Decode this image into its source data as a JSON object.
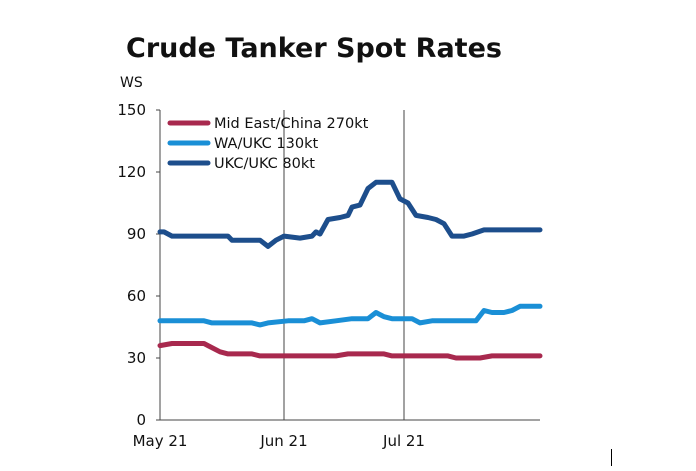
{
  "chart_data": {
    "type": "line",
    "title": "Crude Tanker Spot Rates",
    "ylabel": "WS",
    "xlabel": "",
    "ylim": [
      0,
      150
    ],
    "yticks": [
      0,
      30,
      60,
      90,
      120,
      150
    ],
    "xlim": [
      "2021-05-01",
      "2021-08-04"
    ],
    "xticks": [
      {
        "date": "2021-05-01",
        "label": "May 21"
      },
      {
        "date": "2021-06-01",
        "label": "Jun 21"
      },
      {
        "date": "2021-07-01",
        "label": "Jul 21"
      }
    ],
    "grid": "vertical-month-lines",
    "legend": "top-left",
    "series": [
      {
        "name": "Mid East/China 270kt",
        "color": "#a8294e",
        "points": [
          [
            "2021-05-01",
            36
          ],
          [
            "2021-05-04",
            37
          ],
          [
            "2021-05-12",
            37
          ],
          [
            "2021-05-13",
            36
          ],
          [
            "2021-05-16",
            33
          ],
          [
            "2021-05-18",
            32
          ],
          [
            "2021-05-24",
            32
          ],
          [
            "2021-05-26",
            31
          ],
          [
            "2021-06-14",
            31
          ],
          [
            "2021-06-17",
            32
          ],
          [
            "2021-06-22",
            32
          ],
          [
            "2021-06-26",
            32
          ],
          [
            "2021-06-28",
            31
          ],
          [
            "2021-07-12",
            31
          ],
          [
            "2021-07-14",
            30
          ],
          [
            "2021-07-20",
            30
          ],
          [
            "2021-07-23",
            31
          ],
          [
            "2021-08-04",
            31
          ]
        ]
      },
      {
        "name": "WA/UKC 130kt",
        "color": "#1a8fd6",
        "points": [
          [
            "2021-05-01",
            48
          ],
          [
            "2021-05-12",
            48
          ],
          [
            "2021-05-14",
            47
          ],
          [
            "2021-05-24",
            47
          ],
          [
            "2021-05-26",
            46
          ],
          [
            "2021-05-28",
            47
          ],
          [
            "2021-06-02",
            48
          ],
          [
            "2021-06-06",
            48
          ],
          [
            "2021-06-08",
            49
          ],
          [
            "2021-06-10",
            47
          ],
          [
            "2021-06-14",
            48
          ],
          [
            "2021-06-18",
            49
          ],
          [
            "2021-06-22",
            49
          ],
          [
            "2021-06-24",
            52
          ],
          [
            "2021-06-26",
            50
          ],
          [
            "2021-06-28",
            49
          ],
          [
            "2021-07-03",
            49
          ],
          [
            "2021-07-05",
            47
          ],
          [
            "2021-07-08",
            48
          ],
          [
            "2021-07-14",
            48
          ],
          [
            "2021-07-19",
            48
          ],
          [
            "2021-07-21",
            53
          ],
          [
            "2021-07-23",
            52
          ],
          [
            "2021-07-26",
            52
          ],
          [
            "2021-07-28",
            53
          ],
          [
            "2021-07-30",
            55
          ],
          [
            "2021-08-04",
            55
          ]
        ]
      },
      {
        "name": "UKC/UKC 80kt",
        "color": "#1d4e8c",
        "points": [
          [
            "2021-05-01",
            91
          ],
          [
            "2021-05-02",
            91
          ],
          [
            "2021-05-04",
            89
          ],
          [
            "2021-05-18",
            89
          ],
          [
            "2021-05-19",
            87
          ],
          [
            "2021-05-26",
            87
          ],
          [
            "2021-05-28",
            84
          ],
          [
            "2021-05-30",
            87
          ],
          [
            "2021-06-01",
            89
          ],
          [
            "2021-06-05",
            88
          ],
          [
            "2021-06-08",
            89
          ],
          [
            "2021-06-09",
            91
          ],
          [
            "2021-06-10",
            90
          ],
          [
            "2021-06-12",
            97
          ],
          [
            "2021-06-15",
            98
          ],
          [
            "2021-06-17",
            99
          ],
          [
            "2021-06-18",
            103
          ],
          [
            "2021-06-20",
            104
          ],
          [
            "2021-06-22",
            112
          ],
          [
            "2021-06-24",
            115
          ],
          [
            "2021-06-28",
            115
          ],
          [
            "2021-06-30",
            107
          ],
          [
            "2021-07-02",
            105
          ],
          [
            "2021-07-04",
            99
          ],
          [
            "2021-07-07",
            98
          ],
          [
            "2021-07-09",
            97
          ],
          [
            "2021-07-11",
            95
          ],
          [
            "2021-07-13",
            89
          ],
          [
            "2021-07-16",
            89
          ],
          [
            "2021-07-18",
            90
          ],
          [
            "2021-07-21",
            92
          ],
          [
            "2021-08-04",
            92
          ]
        ]
      }
    ]
  }
}
